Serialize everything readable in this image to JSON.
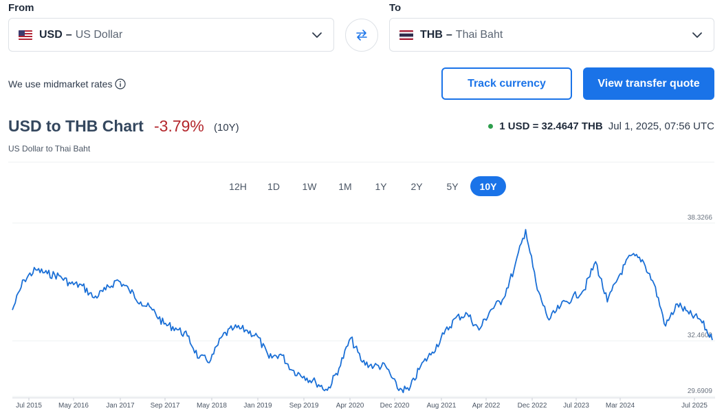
{
  "converter": {
    "from_label": "From",
    "to_label": "To",
    "from": {
      "code": "USD",
      "dash": "–",
      "name": "US Dollar",
      "flag": "us-flag"
    },
    "to": {
      "code": "THB",
      "dash": "–",
      "name": "Thai Baht",
      "flag": "th-flag"
    }
  },
  "notice": {
    "text": "We use midmarket rates"
  },
  "buttons": {
    "track": "Track currency",
    "quote": "View transfer quote"
  },
  "header": {
    "title": "USD to THB Chart",
    "change": "-3.79%",
    "period": "(10Y)",
    "subtitle": "US Dollar to Thai Baht",
    "rate": "1 USD = 32.4647 THB",
    "timestamp": "Jul 1, 2025, 07:56 UTC"
  },
  "tabs": [
    {
      "label": "12H",
      "active": false
    },
    {
      "label": "1D",
      "active": false
    },
    {
      "label": "1W",
      "active": false
    },
    {
      "label": "1M",
      "active": false
    },
    {
      "label": "1Y",
      "active": false
    },
    {
      "label": "2Y",
      "active": false
    },
    {
      "label": "5Y",
      "active": false
    },
    {
      "label": "10Y",
      "active": true
    }
  ],
  "colors": {
    "accent": "#1a73e8",
    "negative": "#b3262c",
    "live": "#2e9e4d",
    "line": "#1a6fd6"
  },
  "chart_data": {
    "type": "line",
    "xlabel": "",
    "ylabel": "",
    "x_tick_labels": [
      "Jul 2015",
      "May 2016",
      "Jan 2017",
      "Sep 2017",
      "May 2018",
      "Jan 2019",
      "Sep 2019",
      "Apr 2020",
      "Dec 2020",
      "Aug 2021",
      "Apr 2022",
      "Dec 2022",
      "Jul 2023",
      "Mar 2024",
      "Jul 2025"
    ],
    "y_tick_labels": [
      "38.3266",
      "32.4609",
      "29.6909"
    ],
    "ylim": [
      29.6909,
      38.3266
    ],
    "x": [
      "2015-06",
      "2015-08",
      "2015-10",
      "2015-12",
      "2016-02",
      "2016-04",
      "2016-06",
      "2016-08",
      "2016-10",
      "2016-12",
      "2017-02",
      "2017-04",
      "2017-06",
      "2017-08",
      "2017-10",
      "2017-12",
      "2018-02",
      "2018-04",
      "2018-06",
      "2018-08",
      "2018-10",
      "2018-12",
      "2019-02",
      "2019-04",
      "2019-06",
      "2019-08",
      "2019-10",
      "2019-12",
      "2020-02",
      "2020-04",
      "2020-06",
      "2020-08",
      "2020-10",
      "2020-12",
      "2021-02",
      "2021-04",
      "2021-06",
      "2021-08",
      "2021-10",
      "2021-12",
      "2022-02",
      "2022-04",
      "2022-06",
      "2022-08",
      "2022-10",
      "2022-12",
      "2023-02",
      "2023-04",
      "2023-06",
      "2023-08",
      "2023-10",
      "2023-12",
      "2024-02",
      "2024-04",
      "2024-06",
      "2024-08",
      "2024-10",
      "2024-12",
      "2025-02",
      "2025-04",
      "2025-06"
    ],
    "values": [
      34.0,
      35.5,
      36.0,
      35.8,
      35.7,
      35.3,
      35.2,
      34.6,
      35.0,
      35.5,
      35.0,
      34.4,
      34.0,
      33.3,
      33.1,
      32.7,
      31.6,
      31.5,
      32.7,
      33.1,
      33.0,
      32.7,
      31.6,
      31.8,
      31.0,
      30.7,
      30.4,
      30.0,
      31.1,
      32.6,
      31.4,
      31.2,
      31.2,
      30.1,
      30.0,
      31.2,
      31.9,
      32.8,
      33.6,
      33.8,
      33.0,
      34.0,
      34.5,
      36.0,
      38.0,
      35.0,
      33.5,
      34.2,
      34.6,
      35.0,
      36.4,
      34.4,
      35.7,
      36.7,
      36.5,
      35.3,
      33.2,
      34.3,
      33.8,
      33.5,
      32.5
    ]
  }
}
